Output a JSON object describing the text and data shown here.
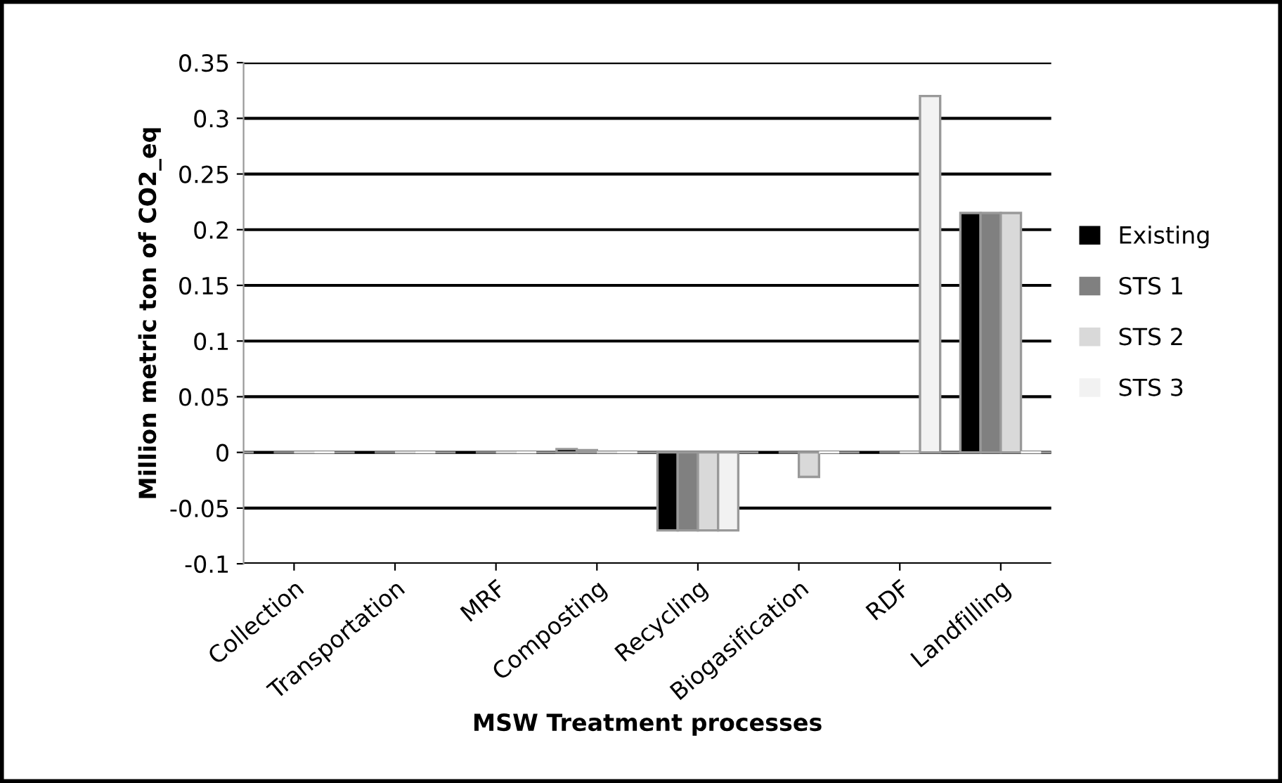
{
  "chart_data": {
    "type": "bar",
    "xlabel": "MSW Treatment processes",
    "ylabel": "Million metric ton of CO2_eq",
    "categories": [
      "Collection",
      "Transportation",
      "MRF",
      "Composting",
      "Recycling",
      "Biogasification",
      "RDF",
      "Landfilling"
    ],
    "series": [
      {
        "name": "Existing",
        "color": "#000000",
        "values": [
          0,
          0,
          0,
          0.003,
          -0.07,
          0,
          0,
          0.215
        ]
      },
      {
        "name": "STS 1",
        "color": "#808080",
        "values": [
          0,
          0,
          0,
          0.002,
          -0.07,
          0,
          0,
          0.215
        ]
      },
      {
        "name": "STS 2",
        "color": "#d9d9d9",
        "values": [
          0,
          0,
          0,
          0,
          -0.07,
          -0.022,
          0,
          0.215
        ]
      },
      {
        "name": "STS 3",
        "color": "#f2f2f2",
        "values": [
          0,
          0,
          0,
          0,
          -0.07,
          0,
          0.32,
          0
        ]
      }
    ],
    "ylim": [
      -0.1,
      0.35
    ],
    "yticks": [
      -0.1,
      -0.05,
      0,
      0.05,
      0.1,
      0.15,
      0.2,
      0.25,
      0.3,
      0.35
    ],
    "grid": "y",
    "legend": "right"
  }
}
